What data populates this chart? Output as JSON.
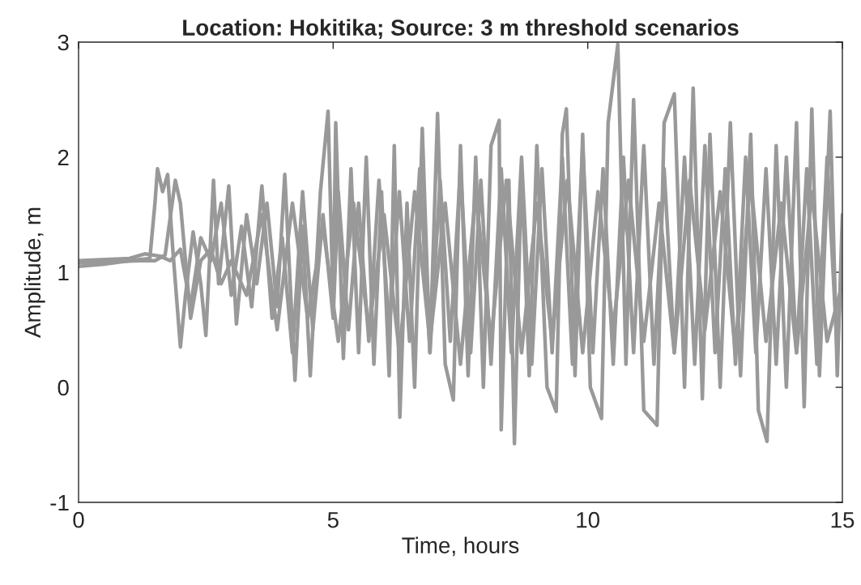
{
  "chart_data": {
    "type": "line",
    "title": "Location: Hokitika; Source: 3 m threshold scenarios",
    "xlabel": "Time, hours",
    "ylabel": "Amplitude, m",
    "xlim": [
      0,
      15
    ],
    "xticks": [
      0,
      5,
      10,
      15
    ],
    "ylim": [
      -1,
      3
    ],
    "yticks": [
      -1,
      0,
      1,
      2,
      3
    ],
    "line_style": "solid",
    "marker": "none",
    "series": [
      {
        "color": "#999999",
        "x": [
          0,
          0.5,
          1.0,
          1.4,
          1.5,
          1.55,
          1.65,
          1.75,
          1.85,
          2.0,
          2.1,
          2.25,
          2.4,
          2.5,
          2.65,
          2.75,
          2.95,
          3.1,
          3.3,
          3.5,
          3.7,
          3.9,
          4.05,
          4.25,
          4.4,
          4.55,
          4.75,
          4.9,
          5.0,
          5.05,
          5.2,
          5.35,
          5.5,
          5.65,
          5.8,
          5.95,
          6.1,
          6.2,
          6.31,
          6.45,
          6.6,
          6.75,
          6.9,
          7.05,
          7.2,
          7.36,
          7.5,
          7.65,
          7.8,
          7.95,
          8.1,
          8.26,
          8.3,
          8.45,
          8.56,
          8.7,
          8.85,
          9.0,
          9.2,
          9.38,
          9.5,
          9.58,
          9.75,
          9.9,
          10.05,
          10.27,
          10.4,
          10.59,
          10.75,
          10.9,
          11.1,
          11.36,
          11.5,
          11.7,
          11.9,
          12.07,
          12.25,
          12.4,
          12.6,
          12.8,
          13.0,
          13.2,
          13.35,
          13.52,
          13.7,
          13.9,
          14.1,
          14.25,
          14.4,
          14.55,
          14.76,
          14.9,
          15.0
        ],
        "values": [
          1.05,
          1.07,
          1.1,
          1.12,
          1.6,
          1.9,
          1.7,
          1.85,
          1.2,
          0.35,
          0.8,
          1.35,
          0.9,
          0.45,
          1.8,
          0.9,
          1.75,
          0.55,
          1.5,
          0.9,
          1.6,
          0.7,
          1.85,
          0.06,
          1.4,
          0.1,
          1.7,
          2.4,
          0.7,
          2.3,
          0.25,
          1.9,
          0.3,
          2.0,
          0.2,
          1.7,
          0.1,
          2.1,
          -0.26,
          1.6,
          0.0,
          2.25,
          0.3,
          2.38,
          0.2,
          -0.11,
          2.1,
          0.1,
          2.0,
          0.0,
          2.1,
          2.32,
          -0.37,
          1.8,
          -0.49,
          1.9,
          0.1,
          2.1,
          0.0,
          -0.21,
          2.2,
          2.42,
          0.1,
          2.2,
          0.0,
          -0.27,
          2.3,
          2.98,
          0.2,
          2.5,
          -0.2,
          -0.33,
          2.3,
          2.55,
          0.0,
          2.6,
          -0.1,
          2.2,
          0.0,
          2.3,
          0.1,
          2.2,
          -0.2,
          -0.47,
          2.1,
          0.0,
          2.3,
          -0.17,
          2.42,
          0.1,
          2.4,
          0.1,
          1.5
        ]
      },
      {
        "color": "#999999",
        "x": [
          0,
          1.0,
          1.3,
          1.6,
          1.8,
          2.0,
          2.2,
          2.4,
          2.6,
          2.8,
          3.0,
          3.2,
          3.4,
          3.6,
          3.8,
          4.0,
          4.2,
          4.4,
          4.6,
          4.8,
          5.0,
          5.1,
          5.3,
          5.5,
          5.7,
          5.9,
          6.1,
          6.3,
          6.5,
          6.7,
          6.9,
          7.1,
          7.3,
          7.5,
          7.7,
          7.9,
          8.1,
          8.3,
          8.5,
          8.7,
          8.9,
          9.1,
          9.3,
          9.5,
          9.7,
          9.9,
          10.1,
          10.3,
          10.5,
          10.7,
          10.9,
          11.1,
          11.3,
          11.5,
          11.7,
          11.9,
          12.1,
          12.3,
          12.5,
          12.7,
          12.9,
          13.1,
          13.3,
          13.5,
          13.7,
          13.9,
          14.1,
          14.3,
          14.5,
          14.7,
          14.9,
          15.0
        ],
        "values": [
          1.1,
          1.12,
          1.16,
          1.14,
          1.1,
          1.2,
          0.7,
          1.3,
          1.1,
          1.6,
          0.8,
          1.4,
          0.7,
          1.75,
          0.6,
          1.3,
          0.3,
          1.7,
          0.5,
          1.5,
          0.6,
          1.7,
          0.5,
          1.6,
          0.4,
          1.8,
          0.5,
          1.7,
          0.4,
          1.9,
          0.3,
          1.8,
          0.4,
          1.9,
          0.3,
          1.8,
          0.2,
          1.9,
          0.3,
          2.0,
          0.2,
          1.9,
          0.3,
          2.0,
          0.2,
          2.1,
          0.3,
          1.9,
          0.2,
          2.0,
          0.3,
          2.1,
          0.2,
          1.9,
          0.3,
          2.0,
          0.2,
          2.1,
          0.3,
          1.9,
          0.2,
          2.0,
          0.3,
          1.9,
          0.2,
          2.0,
          0.3,
          1.9,
          0.2,
          2.0,
          0.3,
          1.2
        ]
      },
      {
        "color": "#999999",
        "x": [
          0,
          1.2,
          1.5,
          1.7,
          1.9,
          2.0,
          2.2,
          2.4,
          2.6,
          2.8,
          3.0,
          3.3,
          3.6,
          3.9,
          4.2,
          4.5,
          4.8,
          5.1,
          5.4,
          5.7,
          6.0,
          6.3,
          6.6,
          6.9,
          7.2,
          7.5,
          7.8,
          8.1,
          8.4,
          8.7,
          9.0,
          9.3,
          9.6,
          9.9,
          10.2,
          10.5,
          10.8,
          11.1,
          11.4,
          11.7,
          12.0,
          12.3,
          12.6,
          12.9,
          13.2,
          13.5,
          13.8,
          14.1,
          14.4,
          14.7,
          15.0
        ],
        "values": [
          1.08,
          1.1,
          1.1,
          1.15,
          1.8,
          1.6,
          0.6,
          1.1,
          1.2,
          0.9,
          1.1,
          0.8,
          1.5,
          0.5,
          1.6,
          0.6,
          1.4,
          0.4,
          1.6,
          0.5,
          1.5,
          0.3,
          1.7,
          0.4,
          1.6,
          0.2,
          1.7,
          0.4,
          1.8,
          0.3,
          1.6,
          0.4,
          1.8,
          0.3,
          1.7,
          0.5,
          1.8,
          0.4,
          1.6,
          0.3,
          1.8,
          0.5,
          1.7,
          0.3,
          1.8,
          0.4,
          1.6,
          0.3,
          1.7,
          0.4,
          0.9
        ]
      }
    ]
  }
}
